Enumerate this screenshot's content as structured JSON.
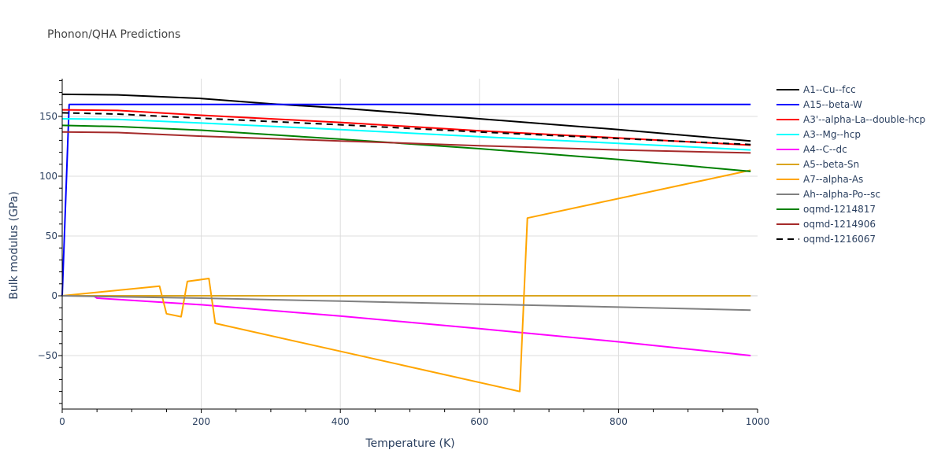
{
  "title": "Phonon/QHA Predictions",
  "chart_data": {
    "type": "line",
    "title": "Phonon/QHA Predictions",
    "xlabel": "Temperature (K)",
    "ylabel": "Bulk modulus (GPa)",
    "xlim": [
      0,
      1000
    ],
    "ylim": [
      -95,
      182
    ],
    "xticks": [
      0,
      200,
      400,
      600,
      800,
      1000
    ],
    "yticks": [
      -50,
      0,
      50,
      100,
      150
    ],
    "grid": true,
    "legend_position": "right",
    "series": [
      {
        "name": "A1--Cu--fcc",
        "color": "#000000",
        "dash": false,
        "x": [
          0,
          80,
          200,
          300,
          400,
          600,
          800,
          990
        ],
        "y": [
          168.5,
          168,
          165,
          160.5,
          157,
          148,
          139,
          129.5
        ]
      },
      {
        "name": "A15--beta-W",
        "color": "#0000ff",
        "dash": false,
        "x": [
          0,
          10,
          990
        ],
        "y": [
          0,
          160,
          160
        ]
      },
      {
        "name": "A3'--alpha-La--double-hcp",
        "color": "#ff0000",
        "dash": false,
        "x": [
          0,
          80,
          200,
          400,
          600,
          800,
          990
        ],
        "y": [
          155.5,
          155,
          151,
          145,
          138,
          132,
          126
        ]
      },
      {
        "name": "A3--Mg--hcp",
        "color": "#00ffff",
        "dash": false,
        "x": [
          0,
          80,
          200,
          400,
          600,
          800,
          990
        ],
        "y": [
          148,
          147.5,
          144.5,
          139,
          133,
          127.5,
          122
        ]
      },
      {
        "name": "A4--C--dc",
        "color": "#ff00ff",
        "dash": false,
        "x": [
          0,
          45,
          50,
          200,
          400,
          600,
          800,
          990
        ],
        "y": [
          0,
          0,
          -2,
          -7.5,
          -17,
          -27.5,
          -38.5,
          -50
        ]
      },
      {
        "name": "A5--beta-Sn",
        "color": "#daa520",
        "dash": false,
        "x": [
          0,
          990
        ],
        "y": [
          0,
          0
        ]
      },
      {
        "name": "A7--alpha-As",
        "color": "#ffa500",
        "dash": false,
        "x": [
          0,
          140,
          150,
          171,
          180,
          211,
          220,
          658,
          669,
          990
        ],
        "y": [
          0,
          8,
          -15,
          -17.5,
          12,
          14.5,
          -23,
          -80,
          65,
          105
        ]
      },
      {
        "name": "Ah--alpha-Po--sc",
        "color": "#808080",
        "dash": false,
        "x": [
          0,
          200,
          400,
          600,
          800,
          990
        ],
        "y": [
          0,
          -2,
          -4.5,
          -7,
          -9.5,
          -12
        ]
      },
      {
        "name": "oqmd-1214817",
        "color": "#008000",
        "dash": false,
        "x": [
          0,
          80,
          200,
          400,
          600,
          800,
          990
        ],
        "y": [
          142.5,
          141.5,
          138.5,
          131,
          123,
          114,
          104
        ]
      },
      {
        "name": "oqmd-1214906",
        "color": "#a52a2a",
        "dash": false,
        "x": [
          0,
          80,
          200,
          400,
          600,
          800,
          990
        ],
        "y": [
          137,
          136.5,
          133.5,
          129.5,
          125.5,
          122,
          119.5
        ]
      },
      {
        "name": "oqmd-1216067",
        "color": "#000000",
        "dash": true,
        "x": [
          0,
          80,
          200,
          400,
          600,
          800,
          990
        ],
        "y": [
          153,
          152,
          148.5,
          143,
          137,
          131.5,
          126.5
        ]
      }
    ]
  }
}
